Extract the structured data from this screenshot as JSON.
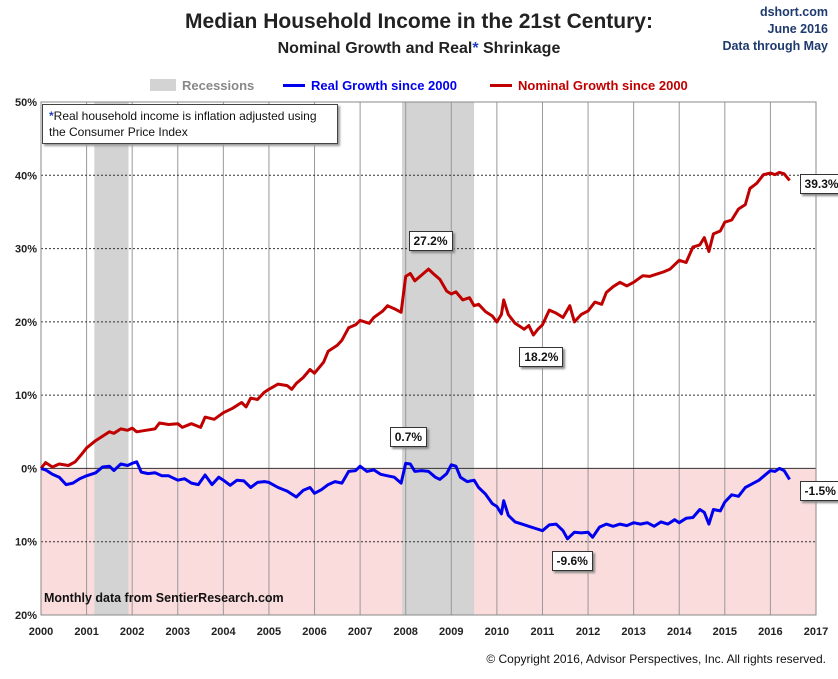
{
  "header": {
    "title": "Median Household Income in the 21st Century:",
    "subtitle_part1": "Nominal  Growth and Real",
    "subtitle_star": "*",
    "subtitle_part2": " Shrinkage",
    "site": "dshort.com",
    "date": "June 2016",
    "data_through": "Data through May"
  },
  "legend": {
    "recessions": "Recessions",
    "real": "Real Growth since 2000",
    "nominal": "Nominal Growth since 2000"
  },
  "note": {
    "star": "*",
    "text": "Real household  income is inflation adjusted using  the Consumer Price Index"
  },
  "source": "Monthly data from SentierResearch.com",
  "copyright": "© Copyright 2016, Advisor Perspectives, Inc. All rights reserved.",
  "colors": {
    "real": "#0000ee",
    "nominal": "#c00000",
    "recession": "#d3d3d3",
    "negative_band": "#fbdcdc"
  },
  "chart_data": {
    "type": "line",
    "xlim": [
      2000,
      2017
    ],
    "ylim": [
      -20,
      50
    ],
    "x_ticks": [
      "2000",
      "2001",
      "2002",
      "2003",
      "2004",
      "2005",
      "2006",
      "2007",
      "2008",
      "2009",
      "2010",
      "2011",
      "2012",
      "2013",
      "2014",
      "2015",
      "2016",
      "2017"
    ],
    "y_ticks": [
      {
        "value": 50,
        "label": "50%"
      },
      {
        "value": 40,
        "label": "40%"
      },
      {
        "value": 30,
        "label": "30%"
      },
      {
        "value": 20,
        "label": "20%"
      },
      {
        "value": 10,
        "label": "10%"
      },
      {
        "value": 0,
        "label": "0%"
      },
      {
        "value": -10,
        "label": "10%"
      },
      {
        "value": -20,
        "label": "20%"
      }
    ],
    "recessions": [
      [
        2001.17,
        2001.92
      ],
      [
        2007.92,
        2009.5
      ]
    ],
    "series": [
      {
        "name": "Nominal Growth since 2000",
        "color": "#c00000",
        "points": [
          [
            2000.0,
            0.0
          ],
          [
            2000.1,
            0.8
          ],
          [
            2000.25,
            0.2
          ],
          [
            2000.4,
            0.6
          ],
          [
            2000.6,
            0.4
          ],
          [
            2000.75,
            0.9
          ],
          [
            2000.9,
            2.0
          ],
          [
            2001.0,
            2.8
          ],
          [
            2001.2,
            3.8
          ],
          [
            2001.4,
            4.6
          ],
          [
            2001.5,
            5.0
          ],
          [
            2001.6,
            4.8
          ],
          [
            2001.75,
            5.4
          ],
          [
            2001.9,
            5.2
          ],
          [
            2002.0,
            5.5
          ],
          [
            2002.1,
            5.0
          ],
          [
            2002.3,
            5.2
          ],
          [
            2002.5,
            5.4
          ],
          [
            2002.6,
            6.2
          ],
          [
            2002.8,
            6.0
          ],
          [
            2003.0,
            6.1
          ],
          [
            2003.1,
            5.6
          ],
          [
            2003.3,
            6.1
          ],
          [
            2003.5,
            5.6
          ],
          [
            2003.6,
            7.0
          ],
          [
            2003.8,
            6.7
          ],
          [
            2004.0,
            7.6
          ],
          [
            2004.2,
            8.2
          ],
          [
            2004.4,
            9.0
          ],
          [
            2004.5,
            8.4
          ],
          [
            2004.6,
            9.6
          ],
          [
            2004.75,
            9.4
          ],
          [
            2004.9,
            10.4
          ],
          [
            2005.0,
            10.8
          ],
          [
            2005.2,
            11.5
          ],
          [
            2005.4,
            11.3
          ],
          [
            2005.5,
            10.8
          ],
          [
            2005.6,
            11.6
          ],
          [
            2005.75,
            12.4
          ],
          [
            2005.9,
            13.5
          ],
          [
            2006.0,
            13.0
          ],
          [
            2006.2,
            14.5
          ],
          [
            2006.3,
            16.0
          ],
          [
            2006.5,
            16.8
          ],
          [
            2006.6,
            17.5
          ],
          [
            2006.75,
            19.2
          ],
          [
            2006.9,
            19.6
          ],
          [
            2007.0,
            20.2
          ],
          [
            2007.2,
            19.8
          ],
          [
            2007.3,
            20.6
          ],
          [
            2007.5,
            21.5
          ],
          [
            2007.6,
            22.2
          ],
          [
            2007.75,
            21.8
          ],
          [
            2007.9,
            21.3
          ],
          [
            2008.0,
            26.2
          ],
          [
            2008.1,
            26.6
          ],
          [
            2008.2,
            25.6
          ],
          [
            2008.35,
            26.4
          ],
          [
            2008.5,
            27.2
          ],
          [
            2008.6,
            26.6
          ],
          [
            2008.75,
            25.8
          ],
          [
            2008.9,
            24.2
          ],
          [
            2009.0,
            23.8
          ],
          [
            2009.1,
            24.1
          ],
          [
            2009.25,
            23.0
          ],
          [
            2009.4,
            23.3
          ],
          [
            2009.5,
            22.2
          ],
          [
            2009.6,
            22.4
          ],
          [
            2009.75,
            21.4
          ],
          [
            2009.9,
            20.8
          ],
          [
            2010.0,
            20.0
          ],
          [
            2010.1,
            21.0
          ],
          [
            2010.15,
            23.0
          ],
          [
            2010.25,
            21.0
          ],
          [
            2010.4,
            19.8
          ],
          [
            2010.5,
            19.4
          ],
          [
            2010.6,
            19.0
          ],
          [
            2010.7,
            19.5
          ],
          [
            2010.8,
            18.2
          ],
          [
            2010.9,
            19.0
          ],
          [
            2011.0,
            19.6
          ],
          [
            2011.15,
            21.6
          ],
          [
            2011.3,
            21.2
          ],
          [
            2011.45,
            20.6
          ],
          [
            2011.6,
            22.2
          ],
          [
            2011.7,
            20.0
          ],
          [
            2011.85,
            21.0
          ],
          [
            2012.0,
            21.5
          ],
          [
            2012.15,
            22.7
          ],
          [
            2012.3,
            22.4
          ],
          [
            2012.4,
            24.0
          ],
          [
            2012.55,
            24.8
          ],
          [
            2012.7,
            25.4
          ],
          [
            2012.85,
            24.9
          ],
          [
            2013.0,
            25.4
          ],
          [
            2013.2,
            26.3
          ],
          [
            2013.35,
            26.2
          ],
          [
            2013.5,
            26.5
          ],
          [
            2013.65,
            26.8
          ],
          [
            2013.8,
            27.2
          ],
          [
            2014.0,
            28.4
          ],
          [
            2014.15,
            28.1
          ],
          [
            2014.3,
            30.2
          ],
          [
            2014.45,
            30.5
          ],
          [
            2014.55,
            31.5
          ],
          [
            2014.65,
            29.6
          ],
          [
            2014.75,
            32.0
          ],
          [
            2014.9,
            32.4
          ],
          [
            2015.0,
            33.6
          ],
          [
            2015.15,
            33.9
          ],
          [
            2015.3,
            35.4
          ],
          [
            2015.45,
            36.0
          ],
          [
            2015.55,
            38.2
          ],
          [
            2015.7,
            38.9
          ],
          [
            2015.85,
            40.1
          ],
          [
            2016.0,
            40.3
          ],
          [
            2016.1,
            40.1
          ],
          [
            2016.2,
            40.4
          ],
          [
            2016.3,
            40.2
          ],
          [
            2016.42,
            39.3
          ]
        ]
      },
      {
        "name": "Real Growth since 2000",
        "color": "#0000ee",
        "points": [
          [
            2000.0,
            0.0
          ],
          [
            2000.1,
            -0.2
          ],
          [
            2000.25,
            -0.8
          ],
          [
            2000.4,
            -1.2
          ],
          [
            2000.55,
            -2.2
          ],
          [
            2000.7,
            -2.0
          ],
          [
            2000.85,
            -1.4
          ],
          [
            2001.0,
            -1.0
          ],
          [
            2001.2,
            -0.6
          ],
          [
            2001.35,
            0.2
          ],
          [
            2001.5,
            0.3
          ],
          [
            2001.6,
            -0.3
          ],
          [
            2001.75,
            0.6
          ],
          [
            2001.9,
            0.4
          ],
          [
            2002.0,
            0.7
          ],
          [
            2002.1,
            0.9
          ],
          [
            2002.2,
            -0.5
          ],
          [
            2002.35,
            -0.7
          ],
          [
            2002.5,
            -0.6
          ],
          [
            2002.65,
            -1.0
          ],
          [
            2002.8,
            -1.0
          ],
          [
            2003.0,
            -1.6
          ],
          [
            2003.15,
            -1.4
          ],
          [
            2003.3,
            -2.0
          ],
          [
            2003.45,
            -2.2
          ],
          [
            2003.6,
            -0.9
          ],
          [
            2003.75,
            -2.2
          ],
          [
            2003.9,
            -1.2
          ],
          [
            2004.0,
            -1.6
          ],
          [
            2004.15,
            -2.3
          ],
          [
            2004.3,
            -1.6
          ],
          [
            2004.45,
            -1.7
          ],
          [
            2004.6,
            -2.6
          ],
          [
            2004.75,
            -1.9
          ],
          [
            2004.9,
            -1.8
          ],
          [
            2005.0,
            -1.9
          ],
          [
            2005.2,
            -2.6
          ],
          [
            2005.4,
            -3.1
          ],
          [
            2005.6,
            -3.9
          ],
          [
            2005.75,
            -3.0
          ],
          [
            2005.9,
            -2.6
          ],
          [
            2006.0,
            -3.4
          ],
          [
            2006.15,
            -2.9
          ],
          [
            2006.3,
            -2.2
          ],
          [
            2006.45,
            -1.8
          ],
          [
            2006.6,
            -2.0
          ],
          [
            2006.75,
            -0.4
          ],
          [
            2006.9,
            -0.3
          ],
          [
            2007.0,
            0.3
          ],
          [
            2007.15,
            -0.4
          ],
          [
            2007.3,
            -0.2
          ],
          [
            2007.45,
            -0.8
          ],
          [
            2007.6,
            -1.0
          ],
          [
            2007.75,
            -1.2
          ],
          [
            2007.9,
            -2.0
          ],
          [
            2008.0,
            0.7
          ],
          [
            2008.1,
            0.6
          ],
          [
            2008.2,
            -0.4
          ],
          [
            2008.35,
            -0.3
          ],
          [
            2008.5,
            -0.4
          ],
          [
            2008.65,
            -1.2
          ],
          [
            2008.75,
            -1.5
          ],
          [
            2008.9,
            -0.7
          ],
          [
            2009.0,
            0.5
          ],
          [
            2009.1,
            0.3
          ],
          [
            2009.2,
            -1.2
          ],
          [
            2009.35,
            -1.8
          ],
          [
            2009.5,
            -1.6
          ],
          [
            2009.6,
            -2.6
          ],
          [
            2009.75,
            -3.5
          ],
          [
            2009.9,
            -4.8
          ],
          [
            2010.0,
            -5.2
          ],
          [
            2010.1,
            -6.2
          ],
          [
            2010.15,
            -4.4
          ],
          [
            2010.25,
            -6.4
          ],
          [
            2010.4,
            -7.3
          ],
          [
            2010.55,
            -7.6
          ],
          [
            2010.7,
            -7.9
          ],
          [
            2010.85,
            -8.2
          ],
          [
            2011.0,
            -8.5
          ],
          [
            2011.15,
            -7.7
          ],
          [
            2011.3,
            -7.6
          ],
          [
            2011.45,
            -8.5
          ],
          [
            2011.55,
            -9.6
          ],
          [
            2011.7,
            -8.7
          ],
          [
            2011.85,
            -8.8
          ],
          [
            2012.0,
            -8.7
          ],
          [
            2012.1,
            -9.4
          ],
          [
            2012.25,
            -8.0
          ],
          [
            2012.4,
            -7.6
          ],
          [
            2012.55,
            -7.9
          ],
          [
            2012.7,
            -7.6
          ],
          [
            2012.85,
            -7.8
          ],
          [
            2013.0,
            -7.4
          ],
          [
            2013.15,
            -7.6
          ],
          [
            2013.3,
            -7.4
          ],
          [
            2013.45,
            -7.9
          ],
          [
            2013.6,
            -7.3
          ],
          [
            2013.75,
            -7.6
          ],
          [
            2013.9,
            -7.0
          ],
          [
            2014.0,
            -7.4
          ],
          [
            2014.15,
            -6.8
          ],
          [
            2014.3,
            -6.7
          ],
          [
            2014.45,
            -5.6
          ],
          [
            2014.55,
            -6.0
          ],
          [
            2014.65,
            -7.6
          ],
          [
            2014.75,
            -5.6
          ],
          [
            2014.9,
            -5.8
          ],
          [
            2015.0,
            -4.6
          ],
          [
            2015.15,
            -3.6
          ],
          [
            2015.3,
            -3.8
          ],
          [
            2015.45,
            -2.6
          ],
          [
            2015.6,
            -2.1
          ],
          [
            2015.75,
            -1.6
          ],
          [
            2015.9,
            -0.8
          ],
          [
            2016.0,
            -0.3
          ],
          [
            2016.1,
            -0.4
          ],
          [
            2016.2,
            0.0
          ],
          [
            2016.3,
            -0.3
          ],
          [
            2016.42,
            -1.5
          ]
        ]
      }
    ],
    "annotations": [
      {
        "text": "27.2%",
        "x": 2008.5,
        "y": 27.2,
        "series": "Nominal Growth since 2000"
      },
      {
        "text": "18.2%",
        "x": 2010.8,
        "y": 18.2,
        "series": "Nominal Growth since 2000"
      },
      {
        "text": "39.3%",
        "x": 2016.42,
        "y": 39.3,
        "series": "Nominal Growth since 2000"
      },
      {
        "text": "0.7%",
        "x": 2008.0,
        "y": 0.7,
        "series": "Real Growth since 2000"
      },
      {
        "text": "-9.6%",
        "x": 2011.55,
        "y": -9.6,
        "series": "Real Growth since 2000"
      },
      {
        "text": "-1.5%",
        "x": 2016.42,
        "y": -1.5,
        "series": "Real Growth since 2000"
      }
    ]
  }
}
